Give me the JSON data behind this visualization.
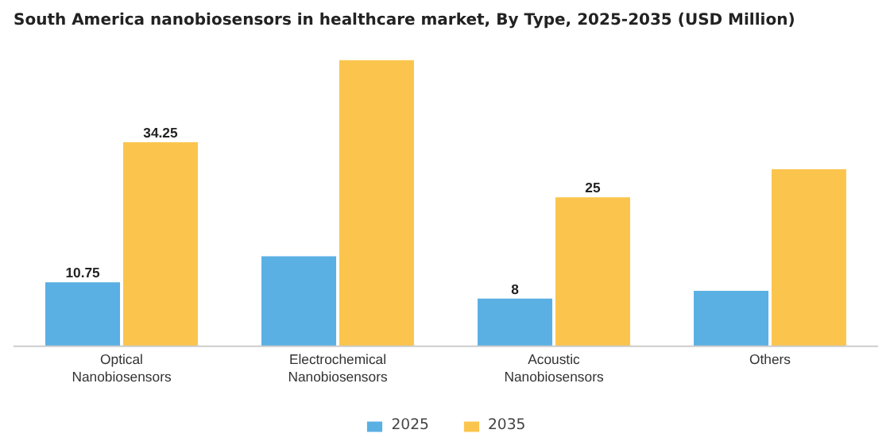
{
  "chart_data": {
    "type": "bar",
    "title": "South America nanobiosensors in healthcare market, By Type, 2025-2035 (USD Million)",
    "categories": [
      "Optical\nNanobiosensors",
      "Electrochemical\nNanobiosensors",
      "Acoustic\nNanobiosensors",
      "Others"
    ],
    "series": [
      {
        "name": "2025",
        "color": "#5aafe3",
        "values": [
          10.75,
          15.1,
          8,
          9.3
        ],
        "value_labels": [
          "10.75",
          null,
          "8",
          null
        ]
      },
      {
        "name": "2035",
        "color": "#fbc54d",
        "values": [
          34.25,
          48.0,
          25,
          29.7
        ],
        "value_labels": [
          "34.25",
          null,
          "25",
          null
        ]
      }
    ],
    "legend": "bottom"
  }
}
